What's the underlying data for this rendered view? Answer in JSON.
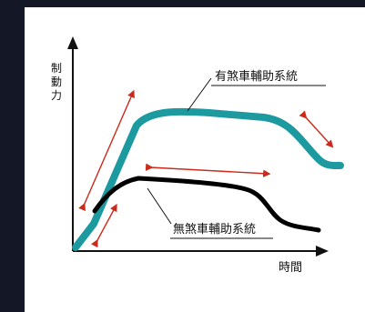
{
  "diagram": {
    "y_axis_label": "制動力",
    "x_axis_label": "時間",
    "curve_with_aux": {
      "label": "有煞車輔助系統",
      "color": "#1d9aa0"
    },
    "curve_without_aux": {
      "label": "無煞車輔助系統",
      "color": "#000000"
    },
    "arrow_color": "#cc2a1a"
  }
}
